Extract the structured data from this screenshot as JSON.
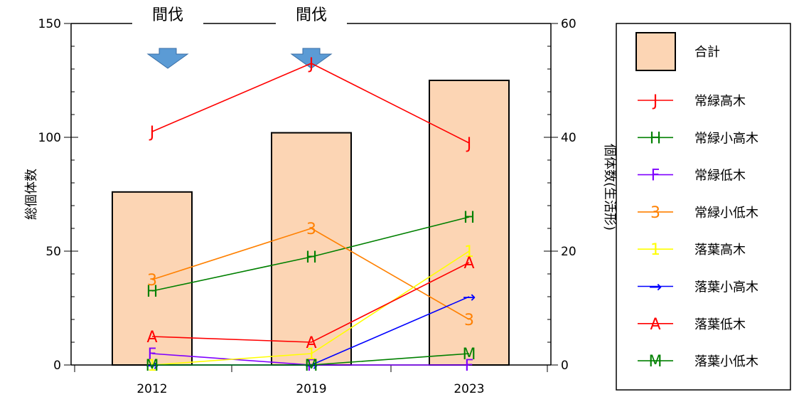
{
  "chart_data": {
    "type": "bar+line",
    "categories": [
      "2012",
      "2019",
      "2023"
    ],
    "left_axis": {
      "label": "総個体数",
      "range": [
        0,
        150
      ],
      "ticks": [
        "0",
        "50",
        "100",
        "150"
      ]
    },
    "right_axis": {
      "label": "個体数(生活形)",
      "range": [
        0,
        60
      ],
      "ticks": [
        "0",
        "20",
        "40",
        "60"
      ]
    },
    "bars": {
      "name": "合計",
      "axis": "left",
      "color": "#FCD5B4",
      "values": [
        76,
        102,
        125
      ]
    },
    "series": [
      {
        "name": "常緑高木",
        "marker": "J",
        "color": "#FF0000",
        "values": [
          41,
          53,
          39
        ]
      },
      {
        "name": "常緑小高木",
        "marker": "H",
        "color": "#008000",
        "values": [
          13,
          19,
          26
        ]
      },
      {
        "name": "常緑低木",
        "marker": "F",
        "color": "#7F00FF",
        "values": [
          2,
          0,
          0
        ]
      },
      {
        "name": "常緑小低木",
        "marker": "3",
        "color": "#FF8000",
        "values": [
          15,
          24,
          8
        ]
      },
      {
        "name": "落葉高木",
        "marker": "1",
        "color": "#FFFF00",
        "values": [
          0,
          2,
          20
        ]
      },
      {
        "name": "落葉小高木",
        "marker": "→",
        "color": "#0000FF",
        "values": [
          0,
          0,
          12
        ]
      },
      {
        "name": "落葉低木",
        "marker": "A",
        "color": "#FF0000",
        "values": [
          5,
          4,
          18
        ]
      },
      {
        "name": "落葉小低木",
        "marker": "M",
        "color": "#008000",
        "values": [
          0,
          0,
          2
        ]
      }
    ],
    "annotations": [
      {
        "text": "間伐",
        "between": [
          "2012",
          "2019"
        ],
        "arrow_color": "#5B9BD5"
      },
      {
        "text": "間伐",
        "at": "2019",
        "arrow_color": "#5B9BD5"
      }
    ],
    "legend": {
      "placement": "right"
    }
  }
}
